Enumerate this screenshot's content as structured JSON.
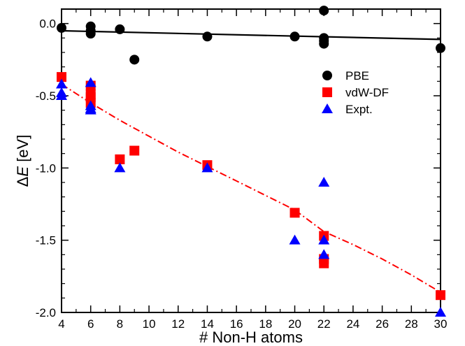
{
  "chart_data": {
    "type": "scatter",
    "xlabel": "# Non-H atoms",
    "ylabel_prefix": "Δ",
    "ylabel_var": "E",
    "ylabel_unit": " [eV]",
    "xlim": [
      4,
      30
    ],
    "ylim": [
      -2.0,
      0.1
    ],
    "x_ticks": [
      4,
      6,
      8,
      10,
      12,
      14,
      16,
      18,
      20,
      22,
      24,
      26,
      28,
      30
    ],
    "x_tick_labels": [
      "4",
      "6",
      "8",
      "10",
      "12",
      "14",
      "16",
      "18",
      "20",
      "22",
      "24",
      "26",
      "28",
      "30"
    ],
    "y_ticks": [
      0.0,
      -0.5,
      -1.0,
      -1.5,
      -2.0
    ],
    "y_tick_labels": [
      "0.0",
      "-0.5",
      "-1.0",
      "-1.5",
      "-2.0"
    ],
    "legend_position": "upper-right",
    "series": [
      {
        "name": "PBE",
        "marker": "circle",
        "color": "#000000",
        "points": [
          [
            4,
            -0.03
          ],
          [
            6,
            -0.02
          ],
          [
            6,
            -0.05
          ],
          [
            6,
            -0.07
          ],
          [
            8,
            -0.04
          ],
          [
            9,
            -0.25
          ],
          [
            14,
            -0.09
          ],
          [
            20,
            -0.09
          ],
          [
            22,
            0.09
          ],
          [
            22,
            -0.1
          ],
          [
            22,
            -0.12
          ],
          [
            22,
            -0.14
          ],
          [
            30,
            -0.17
          ]
        ],
        "fit_line": {
          "from": [
            4,
            -0.05
          ],
          "to": [
            30,
            -0.11
          ],
          "color": "#000000",
          "style": "solid"
        }
      },
      {
        "name": "vdW-DF",
        "marker": "square",
        "color": "#ff0000",
        "points": [
          [
            4,
            -0.37
          ],
          [
            6,
            -0.43
          ],
          [
            6,
            -0.49
          ],
          [
            6,
            -0.51
          ],
          [
            6,
            -0.55
          ],
          [
            8,
            -0.94
          ],
          [
            9,
            -0.88
          ],
          [
            14,
            -0.98
          ],
          [
            20,
            -1.31
          ],
          [
            22,
            -1.47
          ],
          [
            22,
            -1.63
          ],
          [
            22,
            -1.66
          ],
          [
            30,
            -1.88
          ]
        ],
        "fit_curve": {
          "color": "#ff0000",
          "style": "dash-dot",
          "points": [
            [
              4,
              -0.42
            ],
            [
              6,
              -0.55
            ],
            [
              8,
              -0.67
            ],
            [
              10,
              -0.78
            ],
            [
              12,
              -0.89
            ],
            [
              14,
              -0.99
            ],
            [
              16,
              -1.09
            ],
            [
              18,
              -1.19
            ],
            [
              20,
              -1.29
            ],
            [
              22,
              -1.44
            ],
            [
              24,
              -1.53
            ],
            [
              26,
              -1.63
            ],
            [
              28,
              -1.74
            ],
            [
              30,
              -1.86
            ]
          ]
        }
      },
      {
        "name": "Expt.",
        "marker": "triangle",
        "color": "#0000ff",
        "points": [
          [
            4,
            -0.42
          ],
          [
            4,
            -0.48
          ],
          [
            4,
            -0.5
          ],
          [
            6,
            -0.41
          ],
          [
            6,
            -0.57
          ],
          [
            6,
            -0.59
          ],
          [
            6,
            -0.6
          ],
          [
            8,
            -1.0
          ],
          [
            14,
            -1.0
          ],
          [
            20,
            -1.5
          ],
          [
            22,
            -1.1
          ],
          [
            22,
            -1.5
          ],
          [
            22,
            -1.6
          ],
          [
            30,
            -2.0
          ]
        ]
      }
    ]
  }
}
